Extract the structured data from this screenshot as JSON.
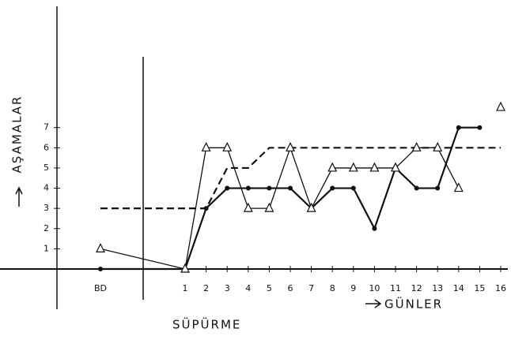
{
  "chart_data": {
    "type": "line",
    "y_label": "AŞAMALAR",
    "x_label": "GÜNLER",
    "phase_label": "SÜPÜRME",
    "categories": [
      "BD",
      "1",
      "2",
      "3",
      "4",
      "5",
      "6",
      "7",
      "8",
      "9",
      "10",
      "11",
      "12",
      "13",
      "14",
      "15",
      "16"
    ],
    "ylim": [
      0,
      13
    ],
    "yticks": [
      1,
      2,
      3,
      4,
      5,
      6,
      7
    ],
    "series": [
      {
        "color": "#111111",
        "marker": "none",
        "dash": true,
        "values": [
          3,
          3,
          3,
          5,
          5,
          6,
          6,
          6,
          6,
          6,
          6,
          6,
          6,
          6,
          6,
          6,
          6
        ]
      },
      {
        "color": "#111111",
        "marker": "dot",
        "dash": false,
        "values": [
          0,
          0,
          3,
          4,
          4,
          4,
          4,
          3,
          4,
          4,
          2,
          5,
          4,
          4,
          7,
          7,
          null
        ]
      },
      {
        "color": "#111111",
        "marker": "triangle",
        "dash": false,
        "values": [
          1,
          0,
          6,
          6,
          3,
          3,
          6,
          3,
          5,
          5,
          5,
          5,
          6,
          6,
          4,
          null,
          8
        ]
      }
    ]
  }
}
